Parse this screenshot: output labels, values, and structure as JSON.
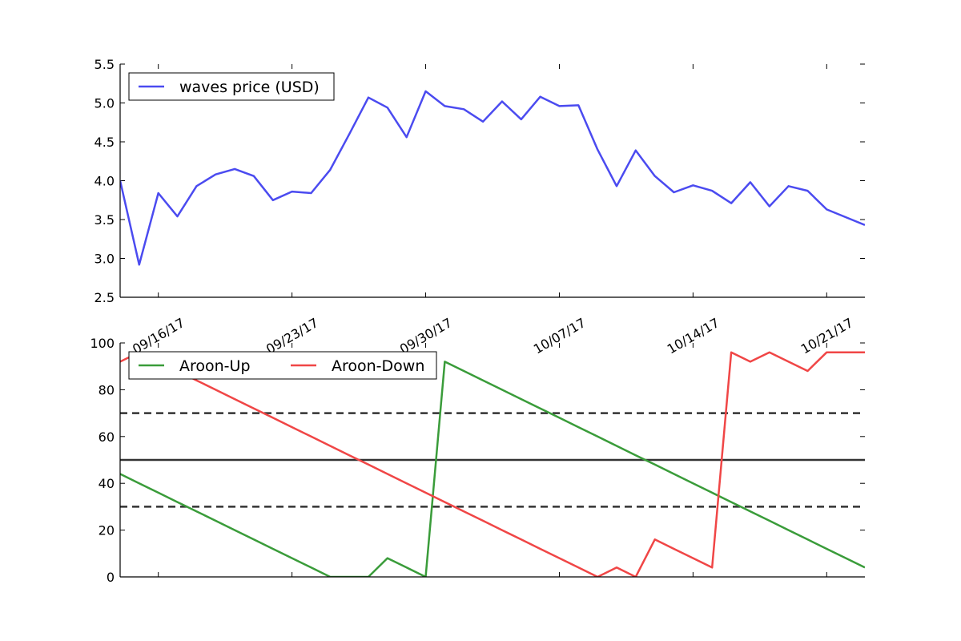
{
  "chart_data": [
    {
      "type": "line",
      "title": "",
      "xlabel": "",
      "ylabel": "",
      "x_start": "2017-09-14",
      "x_step_days": 1,
      "ylim": [
        2.5,
        5.5
      ],
      "yticks": [
        2.5,
        3.0,
        3.5,
        4.0,
        4.5,
        5.0,
        5.5
      ],
      "ytick_labels": [
        "2.5",
        "3.0",
        "3.5",
        "4.0",
        "4.5",
        "5.0",
        "5.5"
      ],
      "xticks": [
        "09/16/17",
        "09/23/17",
        "09/30/17",
        "10/07/17",
        "10/14/17",
        "10/21/17"
      ],
      "legend_position": "top-left",
      "series": [
        {
          "name": "waves price (USD)",
          "color": "#4b4bf0",
          "values": [
            4.0,
            2.92,
            3.84,
            3.54,
            3.93,
            4.08,
            4.15,
            4.06,
            3.75,
            3.86,
            3.84,
            4.14,
            4.6,
            5.07,
            4.94,
            4.56,
            5.15,
            4.96,
            4.92,
            4.76,
            5.02,
            4.79,
            5.08,
            4.96,
            4.97,
            4.4,
            3.93,
            4.39,
            4.06,
            3.85,
            3.94,
            3.87,
            3.71,
            3.98,
            3.67,
            3.93,
            3.87,
            3.63,
            3.53,
            3.43
          ]
        }
      ]
    },
    {
      "type": "line",
      "title": "",
      "xlabel": "",
      "ylabel": "",
      "x_start": "2017-09-14",
      "x_step_days": 1,
      "ylim": [
        0,
        100
      ],
      "yticks": [
        0,
        20,
        40,
        60,
        80,
        100
      ],
      "ytick_labels": [
        "0",
        "20",
        "40",
        "60",
        "80",
        "100"
      ],
      "legend_position": "top-left",
      "reference_lines": [
        {
          "y": 70,
          "style": "dashed",
          "color": "#333333"
        },
        {
          "y": 50,
          "style": "solid",
          "color": "#333333"
        },
        {
          "y": 30,
          "style": "dashed",
          "color": "#333333"
        }
      ],
      "series": [
        {
          "name": "Aroon-Up",
          "color": "#3a9c3a",
          "values": [
            44,
            40,
            36,
            32,
            28,
            24,
            20,
            16,
            12,
            8,
            4,
            0,
            0,
            0,
            8,
            4,
            0,
            92,
            88,
            84,
            80,
            76,
            72,
            68,
            64,
            60,
            56,
            52,
            48,
            44,
            40,
            36,
            32,
            28,
            24,
            20,
            16,
            12,
            8,
            4
          ]
        },
        {
          "name": "Aroon-Down",
          "color": "#f04646",
          "values": [
            92,
            96,
            92,
            88,
            84,
            80,
            76,
            72,
            68,
            64,
            60,
            56,
            52,
            48,
            44,
            40,
            36,
            32,
            28,
            24,
            20,
            16,
            12,
            8,
            4,
            0,
            4,
            0,
            16,
            12,
            8,
            4,
            96,
            92,
            96,
            92,
            88,
            96,
            96,
            96
          ]
        }
      ]
    }
  ]
}
